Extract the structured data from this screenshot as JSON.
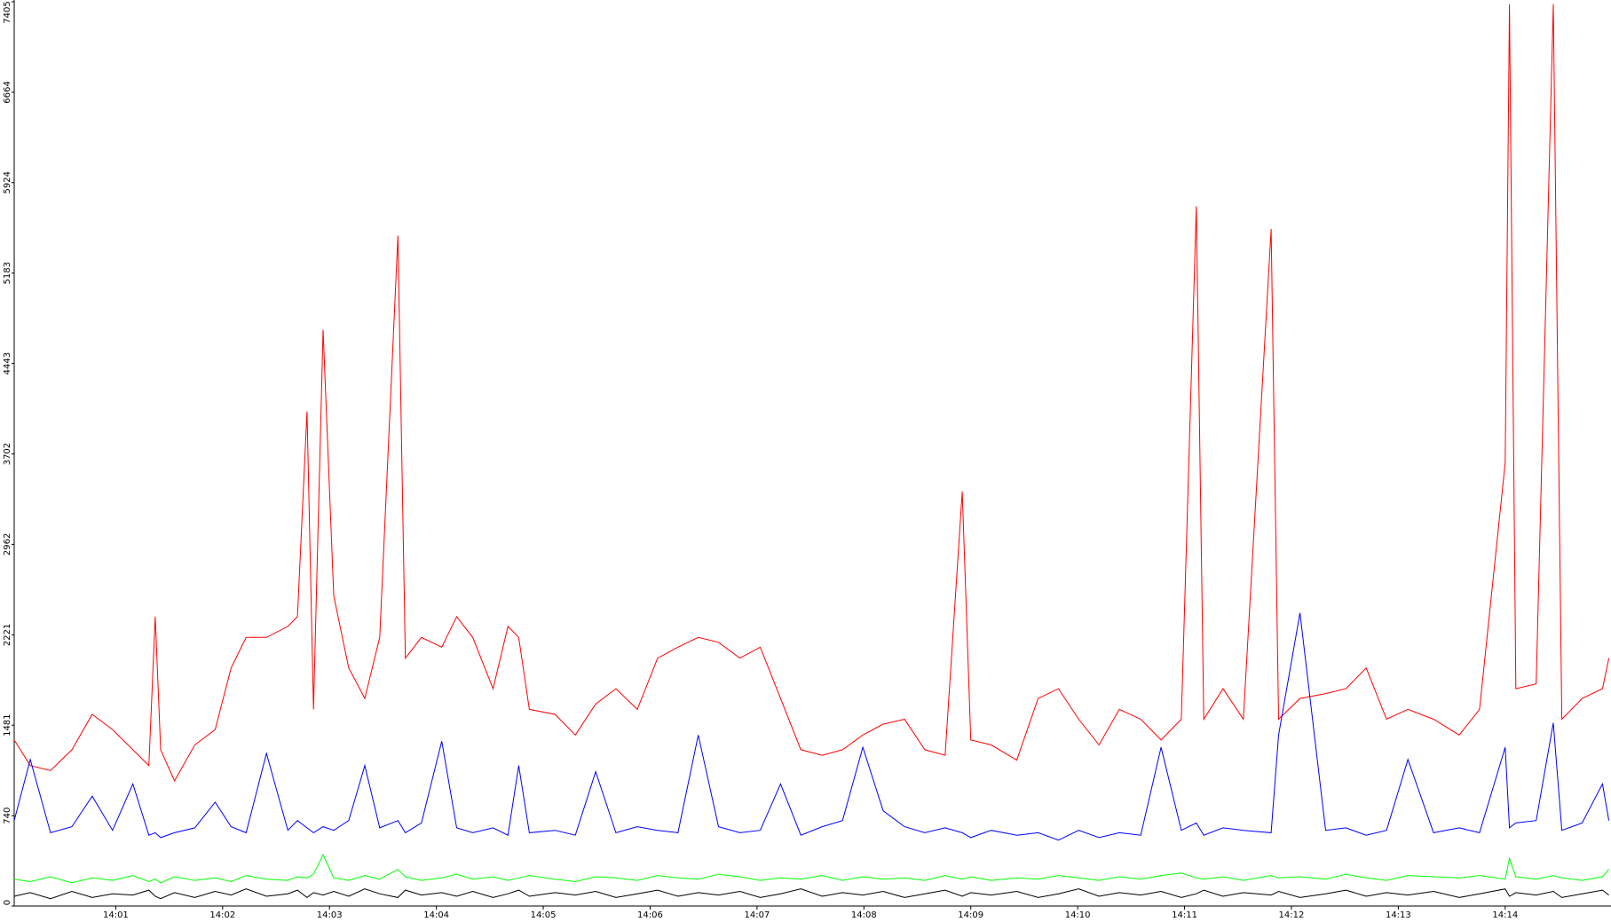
{
  "chart_data": {
    "type": "line",
    "x": [
      0.05,
      0.2,
      0.39,
      0.59,
      0.78,
      0.97,
      1.16,
      1.31,
      1.37,
      1.42,
      1.55,
      1.74,
      1.93,
      2.08,
      2.22,
      2.41,
      2.61,
      2.7,
      2.79,
      2.85,
      2.94,
      3.04,
      3.18,
      3.33,
      3.47,
      3.64,
      3.71,
      3.86,
      4.05,
      4.19,
      4.34,
      4.53,
      4.67,
      4.77,
      4.87,
      5.11,
      5.3,
      5.49,
      5.68,
      5.88,
      6.07,
      6.26,
      6.45,
      6.64,
      6.84,
      7.03,
      7.22,
      7.41,
      7.61,
      7.8,
      7.99,
      8.18,
      8.38,
      8.57,
      8.76,
      8.92,
      9.0,
      9.19,
      9.43,
      9.63,
      9.82,
      10.01,
      10.2,
      10.39,
      10.59,
      10.78,
      10.97,
      11.11,
      11.18,
      11.36,
      11.55,
      11.81,
      11.88,
      12.08,
      12.32,
      12.51,
      12.7,
      12.89,
      13.09,
      13.33,
      13.57,
      13.76,
      14.0,
      14.04,
      14.1,
      14.29,
      14.45,
      14.53,
      14.72,
      14.91,
      14.97
    ],
    "series": [
      {
        "color": "#ff0000",
        "values": [
          1360,
          1150,
          1110,
          1280,
          1570,
          1445,
          1280,
          1150,
          2370,
          1280,
          1025,
          1320,
          1445,
          1950,
          2200,
          2200,
          2290,
          2370,
          4050,
          1610,
          4720,
          2540,
          1950,
          1700,
          2200,
          5490,
          2030,
          2200,
          2120,
          2370,
          2200,
          1780,
          2290,
          2200,
          1610,
          1570,
          1400,
          1655,
          1780,
          1610,
          2030,
          2120,
          2200,
          2160,
          2030,
          2120,
          1700,
          1280,
          1235,
          1280,
          1400,
          1490,
          1530,
          1280,
          1235,
          3395,
          1360,
          1320,
          1195,
          1700,
          1780,
          1530,
          1320,
          1610,
          1530,
          1360,
          1530,
          5730,
          1530,
          1780,
          1530,
          5545,
          1530,
          1700,
          1740,
          1780,
          1950,
          1530,
          1610,
          1530,
          1400,
          1610,
          3630,
          7385,
          1780,
          1820,
          7385,
          1530,
          1700,
          1780,
          2030
        ]
      },
      {
        "color": "#0000ff",
        "values": [
          700,
          1200,
          600,
          650,
          900,
          620,
          1000,
          580,
          600,
          560,
          600,
          640,
          850,
          650,
          600,
          1250,
          620,
          700,
          640,
          600,
          650,
          620,
          700,
          1150,
          640,
          700,
          600,
          680,
          1350,
          640,
          600,
          640,
          580,
          1150,
          600,
          620,
          580,
          1100,
          600,
          650,
          620,
          600,
          1400,
          650,
          600,
          620,
          1000,
          580,
          650,
          700,
          1300,
          780,
          650,
          600,
          640,
          600,
          560,
          620,
          580,
          600,
          540,
          620,
          560,
          600,
          580,
          1300,
          620,
          680,
          580,
          640,
          620,
          600,
          1400,
          2400,
          620,
          640,
          580,
          620,
          1200,
          600,
          640,
          600,
          1300,
          640,
          680,
          700,
          1500,
          620,
          680,
          1000,
          700
        ]
      },
      {
        "color": "#00ff00",
        "values": [
          220,
          200,
          240,
          190,
          230,
          210,
          250,
          200,
          220,
          190,
          240,
          210,
          230,
          200,
          250,
          220,
          210,
          240,
          230,
          260,
          420,
          230,
          210,
          250,
          220,
          300,
          240,
          210,
          230,
          260,
          220,
          240,
          210,
          230,
          250,
          220,
          200,
          240,
          230,
          210,
          250,
          230,
          220,
          260,
          240,
          210,
          230,
          220,
          250,
          210,
          240,
          220,
          230,
          210,
          250,
          220,
          240,
          210,
          230,
          220,
          250,
          230,
          210,
          240,
          220,
          250,
          270,
          230,
          220,
          240,
          210,
          250,
          230,
          240,
          220,
          260,
          230,
          210,
          250,
          240,
          230,
          250,
          220,
          390,
          240,
          220,
          250,
          230,
          210,
          240,
          300
        ]
      },
      {
        "color": "#000000",
        "values": [
          80,
          110,
          60,
          120,
          70,
          100,
          90,
          130,
          80,
          60,
          110,
          70,
          120,
          90,
          140,
          80,
          100,
          130,
          70,
          110,
          90,
          120,
          80,
          140,
          100,
          70,
          130,
          90,
          110,
          80,
          120,
          70,
          100,
          130,
          80,
          110,
          90,
          120,
          70,
          100,
          130,
          80,
          110,
          90,
          120,
          70,
          100,
          140,
          80,
          110,
          90,
          120,
          70,
          100,
          130,
          80,
          110,
          90,
          120,
          70,
          100,
          140,
          80,
          110,
          90,
          120,
          70,
          100,
          130,
          80,
          110,
          90,
          120,
          70,
          100,
          130,
          80,
          110,
          90,
          120,
          70,
          100,
          140,
          80,
          110,
          90,
          120,
          70,
          100,
          130,
          90
        ]
      }
    ],
    "xlim": [
      0.05,
      14.99
    ],
    "xticks": [
      {
        "value": 1,
        "label": "14:01"
      },
      {
        "value": 2,
        "label": "14:02"
      },
      {
        "value": 3,
        "label": "14:03"
      },
      {
        "value": 4,
        "label": "14:04"
      },
      {
        "value": 5,
        "label": "14:05"
      },
      {
        "value": 6,
        "label": "14:06"
      },
      {
        "value": 7,
        "label": "14:07"
      },
      {
        "value": 8,
        "label": "14:08"
      },
      {
        "value": 9,
        "label": "14:09"
      },
      {
        "value": 10,
        "label": "14:10"
      },
      {
        "value": 11,
        "label": "14:11"
      },
      {
        "value": 12,
        "label": "14:12"
      },
      {
        "value": 13,
        "label": "14:13"
      },
      {
        "value": 14,
        "label": "14:14"
      }
    ],
    "ylim": [
      0,
      7405
    ],
    "yticks": [
      0,
      740,
      1481,
      2221,
      2962,
      3702,
      4443,
      5183,
      5924,
      6664,
      7405
    ],
    "grid": false
  }
}
